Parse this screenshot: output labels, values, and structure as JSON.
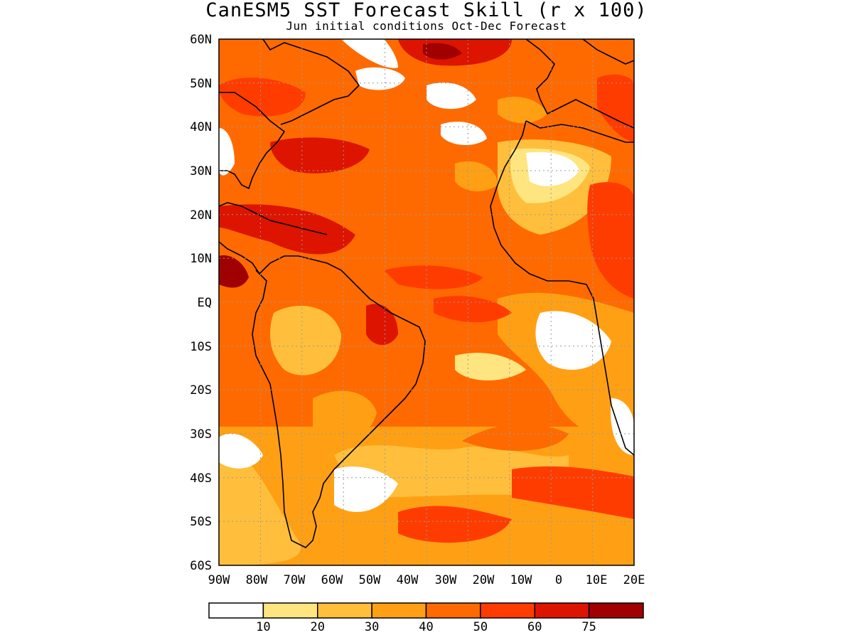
{
  "title": "CanESM5 SST Forecast Skill (r x 100)",
  "subtitle": "Jun initial conditions  Oct-Dec Forecast",
  "axes": {
    "lat_labels": [
      "60N",
      "50N",
      "40N",
      "30N",
      "20N",
      "10N",
      "EQ",
      "10S",
      "20S",
      "30S",
      "40S",
      "50S",
      "60S"
    ],
    "lon_labels": [
      "90W",
      "80W",
      "70W",
      "60W",
      "50W",
      "40W",
      "30W",
      "20W",
      "10W",
      "0",
      "10E",
      "20E"
    ]
  },
  "legend": {
    "bins": [
      {
        "color": "#ffffff"
      },
      {
        "color": "#ffe57f",
        "label": "10"
      },
      {
        "color": "#ffbf3c",
        "label": "20"
      },
      {
        "color": "#ffa014",
        "label": "30"
      },
      {
        "color": "#ff6a00",
        "label": "40"
      },
      {
        "color": "#ff3c00",
        "label": "50"
      },
      {
        "color": "#dd1400",
        "label": "60"
      },
      {
        "color": "#a00000",
        "label": "75"
      }
    ]
  }
}
